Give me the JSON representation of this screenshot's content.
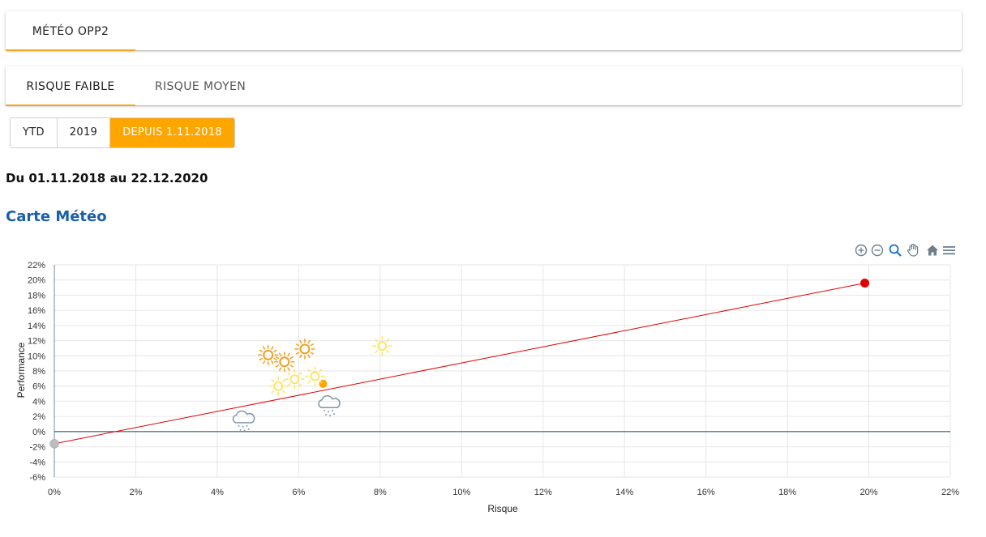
{
  "tabs_top": [
    {
      "label": "Météo OPP2",
      "active": true
    }
  ],
  "tabs_risk": [
    {
      "label": "Risque faible",
      "active": true
    },
    {
      "label": "Risque moyen",
      "active": false
    }
  ],
  "period_buttons": [
    {
      "label": "YTD",
      "active": false
    },
    {
      "label": "2019",
      "active": false
    },
    {
      "label": "Depuis 1.11.2018",
      "active": true
    }
  ],
  "date_range": "Du 01.11.2018 au 22.12.2020",
  "section_title": "Carte Météo",
  "toolbar_icons": [
    "zoom-in-icon",
    "zoom-out-icon",
    "zoom-selection-icon",
    "pan-hand-icon",
    "home-icon",
    "menu-icon"
  ],
  "colors": {
    "accent": "#ffa500",
    "title_blue": "#1a5fa8",
    "line_red": "#e00000",
    "sun_dark": "#f0a020",
    "sun_light": "#fbe46a",
    "rain": "#8899aa",
    "gray_point": "#bdbdbd",
    "zero_line": "#0e4a5a"
  },
  "chart_data": {
    "type": "scatter",
    "xlabel": "Risque",
    "ylabel": "Performance",
    "xlim": [
      0,
      22
    ],
    "ylim": [
      -6,
      22
    ],
    "x_ticks": [
      0,
      2,
      4,
      6,
      8,
      10,
      12,
      14,
      16,
      18,
      20,
      22
    ],
    "y_ticks": [
      -6,
      -4,
      -2,
      0,
      2,
      4,
      6,
      8,
      10,
      12,
      14,
      16,
      18,
      20,
      22
    ],
    "x_tick_labels": [
      "0%",
      "2%",
      "4%",
      "6%",
      "8%",
      "10%",
      "12%",
      "14%",
      "16%",
      "18%",
      "20%",
      "22%"
    ],
    "y_tick_labels": [
      "-6%",
      "-4%",
      "-2%",
      "0%",
      "2%",
      "4%",
      "6%",
      "8%",
      "10%",
      "12%",
      "14%",
      "16%",
      "18%",
      "20%",
      "22%"
    ],
    "grid": true,
    "reference_line": {
      "from": [
        0,
        -1.6
      ],
      "to": [
        19.9,
        19.6
      ],
      "color": "#e00000"
    },
    "points": [
      {
        "x": 0.0,
        "y": -1.6,
        "marker": "circle-gray"
      },
      {
        "x": 19.9,
        "y": 19.6,
        "marker": "circle-red"
      },
      {
        "x": 6.6,
        "y": 6.3,
        "marker": "circle-orange"
      },
      {
        "x": 5.25,
        "y": 10.1,
        "marker": "sun-dark"
      },
      {
        "x": 5.65,
        "y": 9.2,
        "marker": "sun-dark"
      },
      {
        "x": 6.15,
        "y": 10.9,
        "marker": "sun-dark"
      },
      {
        "x": 8.05,
        "y": 11.3,
        "marker": "sun-light"
      },
      {
        "x": 5.5,
        "y": 6.0,
        "marker": "sun-light"
      },
      {
        "x": 5.9,
        "y": 6.9,
        "marker": "sun-light"
      },
      {
        "x": 6.4,
        "y": 7.3,
        "marker": "sun-light"
      },
      {
        "x": 4.65,
        "y": 1.6,
        "marker": "rain-cloud"
      },
      {
        "x": 6.75,
        "y": 3.6,
        "marker": "rain-cloud"
      }
    ]
  }
}
